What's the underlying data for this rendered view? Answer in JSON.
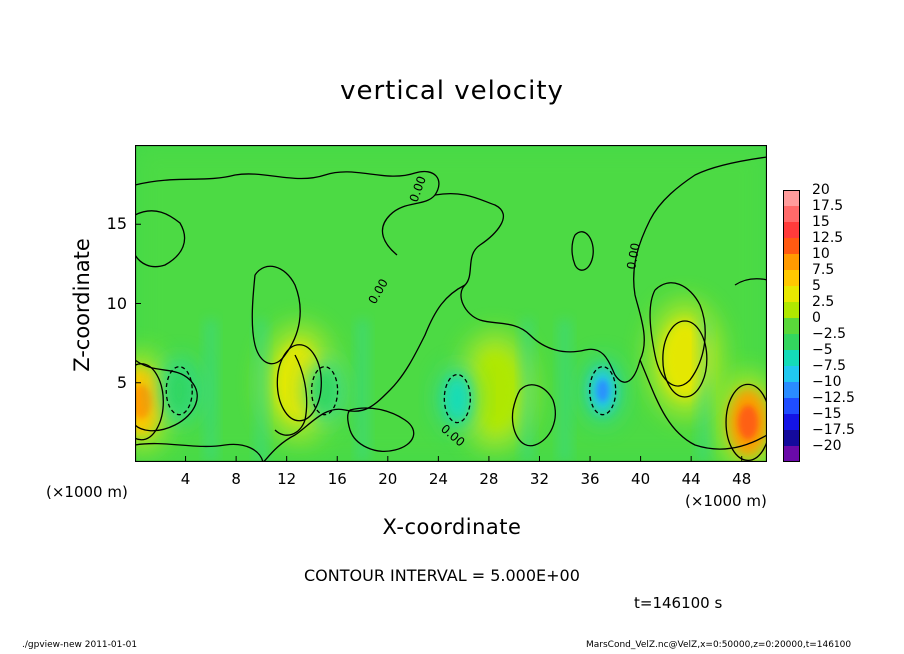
{
  "title": "vertical velocity",
  "chart_data": {
    "type": "heatmap",
    "title": "vertical velocity",
    "xlabel": "X-coordinate",
    "ylabel": "Z-coordinate",
    "x_unit": "(×1000 m)",
    "y_unit": "(×1000 m)",
    "xlim": [
      0,
      50
    ],
    "ylim": [
      0,
      20
    ],
    "x_ticks": [
      4,
      8,
      12,
      16,
      20,
      24,
      28,
      32,
      36,
      40,
      44,
      48
    ],
    "y_ticks": [
      5,
      10,
      15
    ],
    "colorbar": {
      "levels": [
        20,
        17.5,
        15,
        12.5,
        10,
        7.5,
        5,
        2.5,
        0,
        -2.5,
        -5,
        -7.5,
        -10,
        -12.5,
        -15,
        -17.5,
        -20
      ],
      "level_labels": [
        "20",
        "17.5",
        "15",
        "12.5",
        "10",
        "7.5",
        "5",
        "2.5",
        "0",
        "−2.5",
        "−5",
        "−7.5",
        "−10",
        "−12.5",
        "−15",
        "−17.5",
        "−20"
      ],
      "colors": [
        "#ff9c9c",
        "#ff6a6a",
        "#ff3b3b",
        "#ff5a12",
        "#ff9a00",
        "#ffc800",
        "#e8e800",
        "#b0e800",
        "#5ad83a",
        "#33d65e",
        "#14dcb8",
        "#20c8f0",
        "#2a8cff",
        "#1f4dff",
        "#1414e6",
        "#140a9c",
        "#6a0aa8"
      ]
    },
    "contour_label": "0.00",
    "features": [
      {
        "kind": "updraft",
        "x": 0.5,
        "z": 3.8,
        "value": 7.5
      },
      {
        "kind": "updraft",
        "x": 48.5,
        "z": 2.5,
        "value": 10
      },
      {
        "kind": "updraft",
        "x": 43.5,
        "z": 6.5,
        "value": 5
      },
      {
        "kind": "updraft",
        "x": 13,
        "z": 5,
        "value": 5
      },
      {
        "kind": "updraft",
        "x": 28.5,
        "z": 4.5,
        "value": 2.5
      },
      {
        "kind": "downdraft",
        "x": 37,
        "z": 4.5,
        "value": -7.5
      },
      {
        "kind": "downdraft",
        "x": 25.5,
        "z": 4,
        "value": -5
      },
      {
        "kind": "downdraft",
        "x": 15,
        "z": 4.5,
        "value": -2.5
      },
      {
        "kind": "downdraft",
        "x": 3.5,
        "z": 4.5,
        "value": -2.5
      }
    ]
  },
  "contour_interval": "CONTOUR INTERVAL = 5.000E+00",
  "time_stamp": "t=146100 s",
  "footer_left": "./gpview-new   2011-01-01",
  "footer_right": "MarsCond_VelZ.nc@VelZ,x=0:50000,z=0:20000,t=146100"
}
